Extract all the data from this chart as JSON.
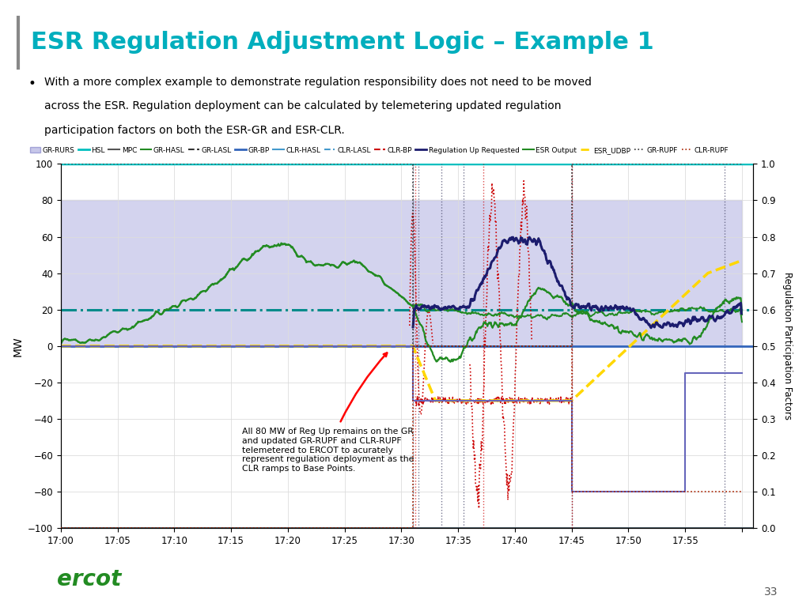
{
  "title": "ESR Regulation Adjustment Logic – Example 1",
  "title_color": "#00AEBD",
  "bullet_text1": "With a more complex example to demonstrate regulation responsibility does not need to be moved",
  "bullet_text2": "across the ESR. Regulation deployment can be calculated by telemetering updated regulation",
  "bullet_text3": "participation factors on both the ESR-GR and ESR-CLR.",
  "ylabel_left": "MW",
  "ylabel_right": "Regulation Participation Factors",
  "xtick_labels": [
    "17:00",
    "17:05",
    "17:10",
    "17:15",
    "17:20",
    "17:25",
    "17:30",
    "17:35",
    "17:40",
    "17:45",
    "17:50",
    "17:55",
    ""
  ],
  "annotation_text": "All 80 MW of Reg Up remains on the GR\nand updated GR-RUPF and CLR-RUPF\ntelemetered to ERCOT to acurately\nrepresent regulation deployment as the\nCLR ramps to Base Points.",
  "bg_fill_color": "#B0B0E0",
  "bg_fill_alpha": 0.55,
  "hsl_color": "#00BFBF",
  "mpc_color": "#555555",
  "gr_hasl_color": "#228B22",
  "gr_lasl_color": "#228B22",
  "gr_bp_color": "#0000CD",
  "clr_hasl_color": "#4499CC",
  "clr_lasl_color": "#4499CC",
  "clr_bp_color": "#CC0000",
  "reg_up_color": "#1C1C6E",
  "esr_output_color": "#228B22",
  "esr_udbp_color": "#FFD700",
  "gr_rupf_color": "#8B0000",
  "clr_rupf_color": "#CC4400",
  "gr_lasl_line": "#555555",
  "clr_lasl_line": "#4499CC",
  "page_number": "33"
}
